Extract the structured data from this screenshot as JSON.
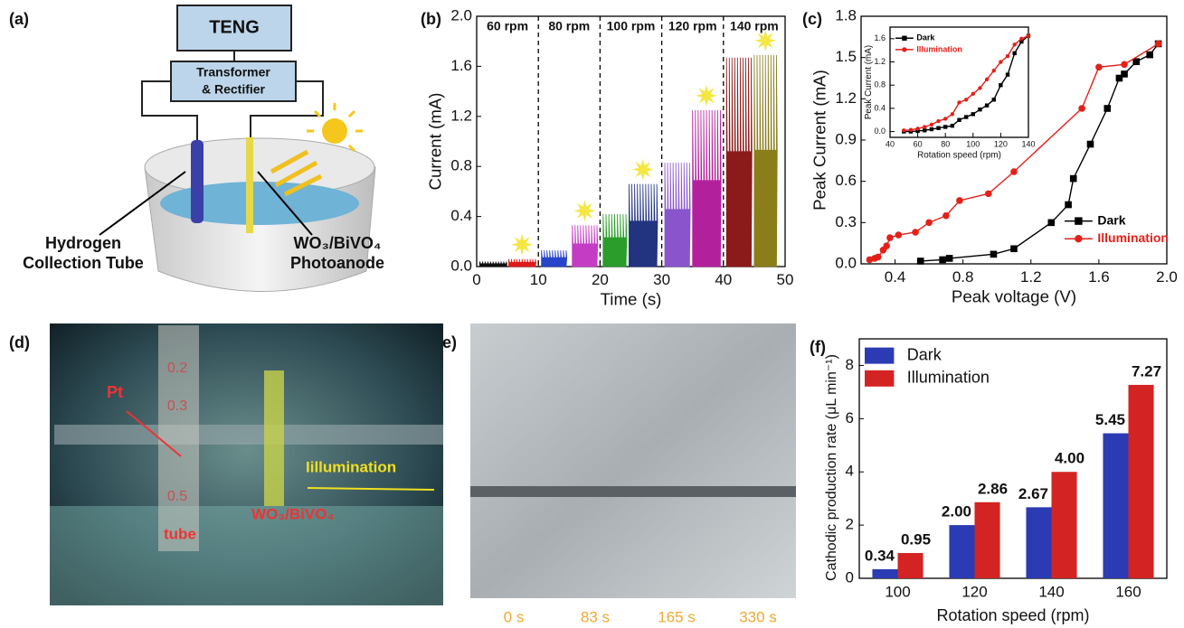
{
  "panel_labels": [
    "(a)",
    "(b)",
    "(c)",
    "(d)",
    "(e)",
    "(f)"
  ],
  "diagram": {
    "teng": "TENG",
    "transformer": [
      "Transformer",
      "& Rectifier"
    ],
    "tube_label": [
      "Hydrogen",
      "Collection Tube"
    ],
    "anode_label": [
      "WO₃/BiVO₄",
      "Photoanode"
    ]
  },
  "photo_d": {
    "scale_marks": [
      "0.2",
      "0.3",
      "0.5"
    ],
    "pt": "Pt",
    "tube": "tube",
    "anode": "WO₃/BiVO₄",
    "light": "Iillumination"
  },
  "photo_e": {
    "times": [
      "0 s",
      "83 s",
      "165 s",
      "330 s"
    ]
  },
  "chart_data": [
    {
      "type": "spikes",
      "x_label": "Time (s)",
      "y_label": "Current (mA)",
      "xlim": [
        0,
        50
      ],
      "xticks": [
        0,
        10,
        20,
        30,
        40,
        50
      ],
      "ylim": [
        0,
        2
      ],
      "yticks": [
        {
          "value": 0,
          "label": "0.0"
        },
        0.4,
        0.8,
        1.2,
        1.6,
        {
          "value": 2,
          "label": "2.0"
        }
      ],
      "categories": [
        "60 rpm",
        "80 rpm",
        "100 rpm",
        "120 rpm",
        "140 rpm"
      ],
      "dividers": [
        10,
        20,
        30,
        40
      ],
      "bursts": [
        {
          "x": [
            0.5,
            4.8
          ],
          "peak": 0.04,
          "color": "#111111"
        },
        {
          "x": [
            5.2,
            9.5
          ],
          "peak": 0.06,
          "color": "#e01b1b"
        },
        {
          "x": [
            10.5,
            14.5
          ],
          "peak": 0.13,
          "color": "#2844c8"
        },
        {
          "x": [
            15.5,
            19.5
          ],
          "peak": 0.33,
          "color": "#c43cc4"
        },
        {
          "x": [
            20.5,
            24.2
          ],
          "peak": 0.42,
          "color": "#2a9d2a"
        },
        {
          "x": [
            24.7,
            29.2
          ],
          "peak": 0.66,
          "color": "#22337f"
        },
        {
          "x": [
            30.5,
            34.5
          ],
          "peak": 0.83,
          "color": "#8a55cc"
        },
        {
          "x": [
            35,
            39.5
          ],
          "peak": 1.25,
          "color": "#b3209c"
        },
        {
          "x": [
            40.5,
            44.5
          ],
          "peak": 1.67,
          "color": "#8b1a1a"
        },
        {
          "x": [
            45,
            48.6
          ],
          "peak": 1.69,
          "color": "#8a7d1a"
        }
      ]
    },
    {
      "type": "line",
      "x_label": "Peak voltage (V)",
      "y_label": "Peak Current (mA)",
      "xlim": [
        0.2,
        2.0
      ],
      "xticks": [
        0.4,
        0.8,
        1.2,
        1.6,
        {
          "value": 2,
          "label": "2.0"
        }
      ],
      "ylim": [
        0,
        1.8
      ],
      "yticks": [
        {
          "value": 0,
          "label": "0.0"
        },
        0.3,
        0.6,
        0.9,
        1.2,
        1.5,
        1.8
      ],
      "legend": "lower right",
      "series": [
        {
          "name": "Dark",
          "color": "#000000",
          "marker": "square",
          "x": [
            0.55,
            0.68,
            0.72,
            0.98,
            1.1,
            1.32,
            1.42,
            1.45,
            1.55,
            1.65,
            1.72,
            1.75,
            1.82,
            1.9,
            1.95
          ],
          "values": [
            0.02,
            0.03,
            0.04,
            0.07,
            0.11,
            0.3,
            0.43,
            0.62,
            0.87,
            1.13,
            1.35,
            1.38,
            1.47,
            1.52,
            1.6
          ]
        },
        {
          "name": "Illumination",
          "color": "#e32119",
          "marker": "circle",
          "x": [
            0.25,
            0.28,
            0.3,
            0.33,
            0.35,
            0.37,
            0.42,
            0.52,
            0.6,
            0.7,
            0.78,
            0.95,
            1.1,
            1.5,
            1.6,
            1.75,
            1.95
          ],
          "values": [
            0.03,
            0.04,
            0.05,
            0.1,
            0.13,
            0.19,
            0.21,
            0.23,
            0.3,
            0.35,
            0.46,
            0.51,
            0.67,
            1.13,
            1.43,
            1.45,
            1.6
          ]
        }
      ]
    },
    {
      "type": "line",
      "x_label": "Rotation speed (rpm)",
      "y_label": "Peak Current (mA)",
      "xlim": [
        40,
        140
      ],
      "xticks": [
        40,
        60,
        80,
        100,
        120,
        140
      ],
      "ylim": [
        -0.1,
        1.8
      ],
      "yticks": [
        {
          "value": 0,
          "label": "0.0"
        },
        0.4,
        0.8,
        1.2,
        1.6
      ],
      "legend": "upper left",
      "series": [
        {
          "name": "Dark",
          "color": "#000000",
          "marker": "square",
          "x": [
            50,
            55,
            60,
            65,
            70,
            75,
            80,
            85,
            90,
            95,
            100,
            105,
            110,
            115,
            120,
            125,
            130,
            135,
            140
          ],
          "values": [
            0,
            0,
            0.01,
            0.02,
            0.04,
            0.06,
            0.08,
            0.1,
            0.2,
            0.25,
            0.3,
            0.38,
            0.45,
            0.55,
            0.8,
            0.98,
            1.35,
            1.55,
            1.65
          ]
        },
        {
          "name": "Illumination",
          "color": "#e32119",
          "marker": "circle",
          "x": [
            50,
            55,
            60,
            65,
            70,
            75,
            80,
            85,
            90,
            95,
            100,
            105,
            110,
            115,
            120,
            125,
            130,
            135,
            140
          ],
          "values": [
            0.02,
            0.03,
            0.05,
            0.08,
            0.12,
            0.18,
            0.22,
            0.3,
            0.5,
            0.55,
            0.65,
            0.75,
            0.9,
            1.05,
            1.2,
            1.3,
            1.5,
            1.6,
            1.65
          ]
        }
      ]
    },
    {
      "type": "bar",
      "x_label": "Rotation speed (rpm)",
      "y_label": "Cathodic production rate (μL min⁻¹)",
      "categories": [
        "100",
        "120",
        "140",
        "160"
      ],
      "ylim": [
        0,
        9
      ],
      "yticks": [
        0,
        2,
        4,
        6,
        8
      ],
      "legend": "upper left",
      "series": [
        {
          "name": "Dark",
          "color": "#2b3bb3",
          "values": [
            0.34,
            2,
            2.67,
            5.45
          ],
          "value_labels": [
            "0.34",
            "2.00",
            "2.67",
            "5.45"
          ]
        },
        {
          "name": "Illumination",
          "color": "#d42323",
          "values": [
            0.95,
            2.86,
            4,
            7.27
          ],
          "value_labels": [
            "0.95",
            "2.86",
            "4.00",
            "7.27"
          ]
        }
      ]
    }
  ]
}
